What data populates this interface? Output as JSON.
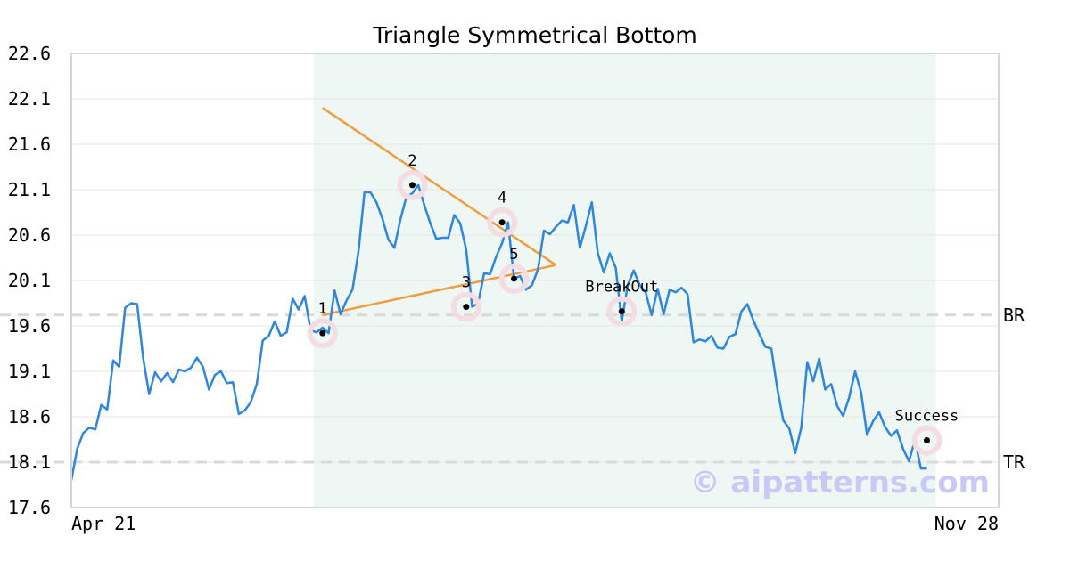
{
  "chart_data": {
    "type": "line",
    "title": "Triangle Symmetrical Bottom",
    "watermark": "© aipatterns.com",
    "ylim": [
      17.6,
      22.6
    ],
    "y_ticks": [
      "22.6",
      "22.1",
      "21.6",
      "21.1",
      "20.6",
      "20.1",
      "19.6",
      "19.1",
      "18.6",
      "18.1",
      "17.6"
    ],
    "x_range": [
      0,
      155
    ],
    "x_ticks": [
      {
        "x": 0,
        "label": "Apr 21"
      },
      {
        "x": 155,
        "label": "Nov 28"
      }
    ],
    "grid": true,
    "colors": {
      "line": "#2e86de",
      "pattern": "#f39c3d",
      "highlight": "#eef7f3",
      "reference": "#d9d9d9",
      "marker_ring": "#f3dde3",
      "watermark": "#c9c9f7",
      "axes": "#d5d5d5"
    },
    "highlight_range": [
      40.5,
      144.5
    ],
    "reference_lines": [
      {
        "label": "BR",
        "value": 19.72
      },
      {
        "label": "TR",
        "value": 18.1
      }
    ],
    "pattern_lines": [
      {
        "from": [
          42,
          22.0
        ],
        "to": [
          81,
          20.27
        ]
      },
      {
        "from": [
          42,
          19.72
        ],
        "to": [
          81,
          20.27
        ]
      }
    ],
    "markers": [
      {
        "label": "1",
        "x": 42,
        "y": 19.52
      },
      {
        "label": "2",
        "x": 57,
        "y": 21.15
      },
      {
        "label": "3",
        "x": 66,
        "y": 19.81
      },
      {
        "label": "4",
        "x": 72,
        "y": 20.74
      },
      {
        "label": "5",
        "x": 74,
        "y": 20.12
      },
      {
        "label": "BreakOut",
        "x": 92,
        "y": 19.76
      },
      {
        "label": "Success",
        "x": 143,
        "y": 18.34
      }
    ],
    "series": [
      {
        "values": [
          17.9,
          18.25,
          18.42,
          18.48,
          18.46,
          18.73,
          18.68,
          19.22,
          19.15,
          19.8,
          19.85,
          19.84,
          19.25,
          18.85,
          19.09,
          18.99,
          19.08,
          18.98,
          19.12,
          19.1,
          19.14,
          19.25,
          19.15,
          18.9,
          19.06,
          19.1,
          18.97,
          18.98,
          18.63,
          18.67,
          18.76,
          18.96,
          19.44,
          19.49,
          19.65,
          19.49,
          19.53,
          19.9,
          19.78,
          19.93,
          19.55,
          19.53,
          19.58,
          19.52,
          19.99,
          19.73,
          19.88,
          20.0,
          20.42,
          21.07,
          21.07,
          20.96,
          20.78,
          20.55,
          20.46,
          20.77,
          21.02,
          21.06,
          21.15,
          20.93,
          20.73,
          20.56,
          20.57,
          20.57,
          20.82,
          20.73,
          20.44,
          19.81,
          19.85,
          20.18,
          20.17,
          20.36,
          20.51,
          20.74,
          20.12,
          20.15,
          20.0,
          20.05,
          20.22,
          20.65,
          20.61,
          20.69,
          20.76,
          20.74,
          20.93,
          20.46,
          20.7,
          20.96,
          20.4,
          20.19,
          20.4,
          20.24,
          19.65,
          20.05,
          20.21,
          20.05,
          19.97,
          19.72,
          20.01,
          19.73,
          20.0,
          19.97,
          20.02,
          19.95,
          19.42,
          19.45,
          19.43,
          19.49,
          19.36,
          19.35,
          19.48,
          19.51,
          19.76,
          19.84,
          19.66,
          19.51,
          19.37,
          19.35,
          18.91,
          18.56,
          18.47,
          18.2,
          18.48,
          19.2,
          18.99,
          19.24,
          18.9,
          18.96,
          18.72,
          18.61,
          18.81,
          19.1,
          18.87,
          18.4,
          18.55,
          18.65,
          18.49,
          18.39,
          18.45,
          18.25,
          18.11,
          18.34,
          18.03,
          18.03
        ]
      }
    ]
  }
}
